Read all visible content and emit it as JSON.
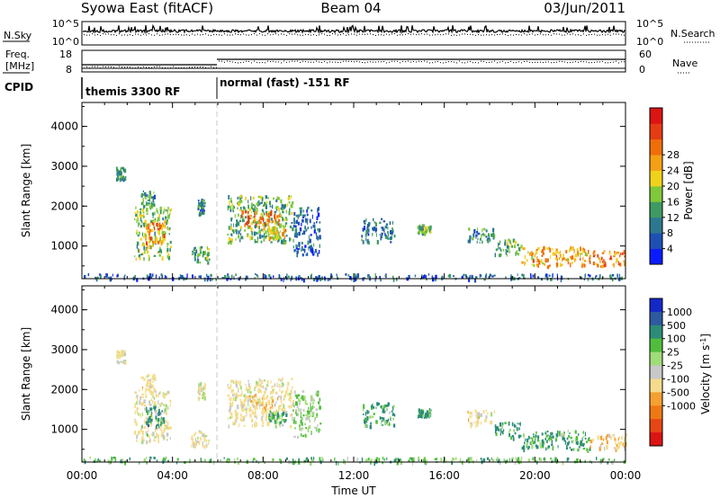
{
  "header": {
    "station": "Syowa East (fitACF)",
    "beam": "Beam 04",
    "date": "03/Jun/2011"
  },
  "panels": {
    "nsky": {
      "left_label": "N.Sky",
      "right_label": "N.Search",
      "left_ticks": [
        "10^5",
        "10^0"
      ],
      "right_ticks": [
        "10^5",
        "10^0"
      ]
    },
    "freq": {
      "left_label_line1": "Freq.",
      "left_label_line2": "[MHz]",
      "left_ticks": [
        "18",
        "8"
      ],
      "right_label": "Nave",
      "right_ticks": [
        "60",
        "0"
      ]
    },
    "cpid": {
      "label": "CPID",
      "modes": [
        "themis 3300 RF",
        "normal (fast) -151 RF"
      ]
    }
  },
  "chart_data": [
    {
      "type": "heatmap",
      "ylabel": "Slant Range [km]",
      "xlabel": "",
      "ylim": [
        180,
        4600
      ],
      "yticks": [
        "1000",
        "2000",
        "3000",
        "4000"
      ],
      "xlim": [
        0,
        24
      ],
      "colorbar": {
        "label": "Power [dB]",
        "ticks": [
          "4",
          "8",
          "12",
          "16",
          "20",
          "24",
          "28"
        ],
        "colors": [
          "#0a1cff",
          "#1e50b4",
          "#2d7891",
          "#3e9a62",
          "#7fc83a",
          "#f0d21c",
          "#f5a014",
          "#f06e0a",
          "#e63c14",
          "#dc1414"
        ]
      },
      "echo_groups": [
        {
          "t0": 0.0,
          "t1": 24.0,
          "r0": 190,
          "r1": 320,
          "value": 6
        },
        {
          "t0": 1.5,
          "t1": 1.9,
          "r0": 2700,
          "r1": 3000,
          "value": 10
        },
        {
          "t0": 2.3,
          "t1": 3.9,
          "r0": 700,
          "r1": 2000,
          "value": 14
        },
        {
          "t0": 2.6,
          "t1": 3.2,
          "r0": 2000,
          "r1": 2400,
          "value": 10
        },
        {
          "t0": 2.8,
          "t1": 3.6,
          "r0": 1100,
          "r1": 1600,
          "value": 22
        },
        {
          "t0": 4.8,
          "t1": 5.6,
          "r0": 600,
          "r1": 1000,
          "value": 12
        },
        {
          "t0": 5.1,
          "t1": 5.4,
          "r0": 1800,
          "r1": 2200,
          "value": 9
        },
        {
          "t0": 6.4,
          "t1": 9.3,
          "r0": 1100,
          "r1": 2300,
          "value": 12
        },
        {
          "t0": 7.0,
          "t1": 8.7,
          "r0": 1500,
          "r1": 1900,
          "value": 22
        },
        {
          "t0": 8.2,
          "t1": 9.0,
          "r0": 1200,
          "r1": 1500,
          "value": 18
        },
        {
          "t0": 9.3,
          "t1": 10.5,
          "r0": 800,
          "r1": 2000,
          "value": 7
        },
        {
          "t0": 12.3,
          "t1": 13.8,
          "r0": 1100,
          "r1": 1700,
          "value": 8
        },
        {
          "t0": 14.8,
          "t1": 15.4,
          "r0": 1350,
          "r1": 1550,
          "value": 12
        },
        {
          "t0": 17.0,
          "t1": 18.2,
          "r0": 1100,
          "r1": 1500,
          "value": 10
        },
        {
          "t0": 18.2,
          "t1": 19.4,
          "r0": 800,
          "r1": 1200,
          "value": 12
        },
        {
          "t0": 19.4,
          "t1": 22.4,
          "r0": 500,
          "r1": 1000,
          "value": 20
        },
        {
          "t0": 22.4,
          "t1": 24.0,
          "r0": 500,
          "r1": 900,
          "value": 22
        }
      ]
    },
    {
      "type": "heatmap",
      "ylabel": "Slant Range [km]",
      "xlabel": "Time UT",
      "ylim": [
        180,
        4600
      ],
      "yticks": [
        "1000",
        "2000",
        "3000",
        "4000"
      ],
      "xlim": [
        0,
        24
      ],
      "xticks": [
        "00:00",
        "04:00",
        "08:00",
        "12:00",
        "16:00",
        "20:00",
        "00:00"
      ],
      "colorbar": {
        "label": "Velocity [m s",
        "label_superscript": "-1",
        "label_close": "]",
        "ticks": [
          "1000",
          "500",
          "100",
          "25",
          "-25",
          "-100",
          "-500",
          "-1000"
        ],
        "colors": [
          "#1428c8",
          "#2d5aa0",
          "#2d8c78",
          "#50be3c",
          "#a0dc78",
          "#c8c8c8",
          "#f5dc8c",
          "#f5a032",
          "#f07814",
          "#e64614",
          "#dc1414"
        ]
      },
      "echo_groups": [
        {
          "t0": 0.0,
          "t1": 24.0,
          "r0": 190,
          "r1": 320,
          "value": 50
        },
        {
          "t0": 1.5,
          "t1": 1.9,
          "r0": 2700,
          "r1": 3000,
          "value": -200
        },
        {
          "t0": 2.3,
          "t1": 3.9,
          "r0": 700,
          "r1": 2000,
          "value": -150
        },
        {
          "t0": 2.6,
          "t1": 3.2,
          "r0": 2000,
          "r1": 2400,
          "value": -250
        },
        {
          "t0": 2.8,
          "t1": 3.6,
          "r0": 1100,
          "r1": 1600,
          "value": 300
        },
        {
          "t0": 4.8,
          "t1": 5.6,
          "r0": 600,
          "r1": 1000,
          "value": -200
        },
        {
          "t0": 5.1,
          "t1": 5.4,
          "r0": 1800,
          "r1": 2200,
          "value": -100
        },
        {
          "t0": 6.4,
          "t1": 9.3,
          "r0": 1100,
          "r1": 2300,
          "value": -200
        },
        {
          "t0": 7.0,
          "t1": 8.7,
          "r0": 1500,
          "r1": 1900,
          "value": -400
        },
        {
          "t0": 8.2,
          "t1": 9.0,
          "r0": 1200,
          "r1": 1500,
          "value": 80
        },
        {
          "t0": 9.3,
          "t1": 10.5,
          "r0": 800,
          "r1": 2000,
          "value": 10
        },
        {
          "t0": 12.3,
          "t1": 13.8,
          "r0": 1100,
          "r1": 1700,
          "value": 150
        },
        {
          "t0": 14.8,
          "t1": 15.4,
          "r0": 1350,
          "r1": 1550,
          "value": 200
        },
        {
          "t0": 17.0,
          "t1": 18.2,
          "r0": 1100,
          "r1": 1500,
          "value": -300
        },
        {
          "t0": 18.2,
          "t1": 19.4,
          "r0": 800,
          "r1": 1200,
          "value": 250
        },
        {
          "t0": 19.4,
          "t1": 22.4,
          "r0": 500,
          "r1": 1000,
          "value": 150
        },
        {
          "t0": 22.4,
          "t1": 24.0,
          "r0": 500,
          "r1": 900,
          "value": -400
        }
      ]
    }
  ]
}
